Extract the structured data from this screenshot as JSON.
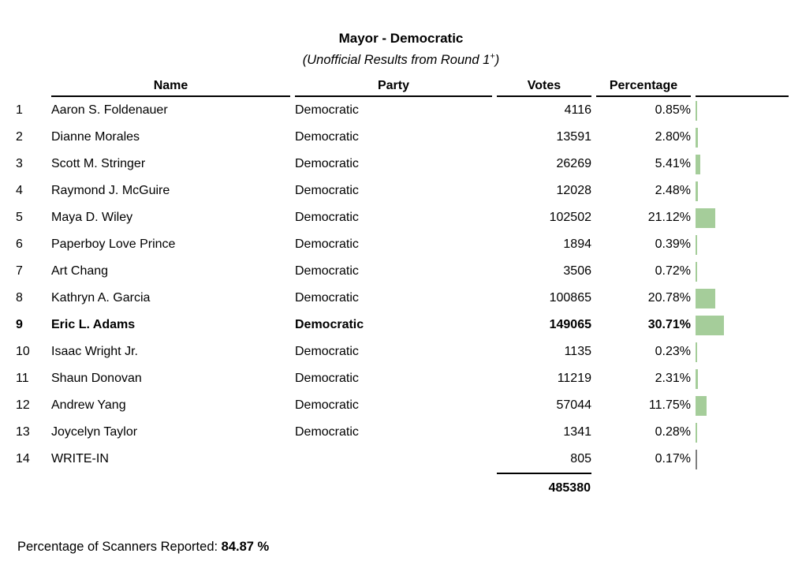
{
  "title": "Mayor - Democratic",
  "subtitle": {
    "prefix": "(Unofficial Results from Round 1",
    "sup": "+",
    "suffix": ")"
  },
  "table": {
    "headers": {
      "name": "Name",
      "party": "Party",
      "votes": "Votes",
      "percentage": "Percentage"
    },
    "rows": [
      {
        "rank": "1",
        "name": "Aaron S. Foldenauer",
        "party": "Democratic",
        "votes": "4116",
        "percentage": "0.85%",
        "pct": 0.85,
        "bold": false,
        "bar_color": "#a5cd9a"
      },
      {
        "rank": "2",
        "name": "Dianne Morales",
        "party": "Democratic",
        "votes": "13591",
        "percentage": "2.80%",
        "pct": 2.8,
        "bold": false,
        "bar_color": "#a5cd9a"
      },
      {
        "rank": "3",
        "name": "Scott M. Stringer",
        "party": "Democratic",
        "votes": "26269",
        "percentage": "5.41%",
        "pct": 5.41,
        "bold": false,
        "bar_color": "#a5cd9a"
      },
      {
        "rank": "4",
        "name": "Raymond J. McGuire",
        "party": "Democratic",
        "votes": "12028",
        "percentage": "2.48%",
        "pct": 2.48,
        "bold": false,
        "bar_color": "#a5cd9a"
      },
      {
        "rank": "5",
        "name": "Maya D. Wiley",
        "party": "Democratic",
        "votes": "102502",
        "percentage": "21.12%",
        "pct": 21.12,
        "bold": false,
        "bar_color": "#a5cd9a"
      },
      {
        "rank": "6",
        "name": "Paperboy Love Prince",
        "party": "Democratic",
        "votes": "1894",
        "percentage": "0.39%",
        "pct": 0.39,
        "bold": false,
        "bar_color": "#a5cd9a"
      },
      {
        "rank": "7",
        "name": "Art Chang",
        "party": "Democratic",
        "votes": "3506",
        "percentage": "0.72%",
        "pct": 0.72,
        "bold": false,
        "bar_color": "#a5cd9a"
      },
      {
        "rank": "8",
        "name": "Kathryn A. Garcia",
        "party": "Democratic",
        "votes": "100865",
        "percentage": "20.78%",
        "pct": 20.78,
        "bold": false,
        "bar_color": "#a5cd9a"
      },
      {
        "rank": "9",
        "name": "Eric L. Adams",
        "party": "Democratic",
        "votes": "149065",
        "percentage": "30.71%",
        "pct": 30.71,
        "bold": true,
        "bar_color": "#a5cd9a"
      },
      {
        "rank": "10",
        "name": "Isaac Wright Jr.",
        "party": "Democratic",
        "votes": "1135",
        "percentage": "0.23%",
        "pct": 0.23,
        "bold": false,
        "bar_color": "#a5cd9a"
      },
      {
        "rank": "11",
        "name": "Shaun Donovan",
        "party": "Democratic",
        "votes": "11219",
        "percentage": "2.31%",
        "pct": 2.31,
        "bold": false,
        "bar_color": "#a5cd9a"
      },
      {
        "rank": "12",
        "name": "Andrew Yang",
        "party": "Democratic",
        "votes": "57044",
        "percentage": "11.75%",
        "pct": 11.75,
        "bold": false,
        "bar_color": "#a5cd9a"
      },
      {
        "rank": "13",
        "name": "Joycelyn Taylor",
        "party": "Democratic",
        "votes": "1341",
        "percentage": "0.28%",
        "pct": 0.28,
        "bold": false,
        "bar_color": "#a5cd9a"
      },
      {
        "rank": "14",
        "name": "WRITE-IN",
        "party": "",
        "votes": "805",
        "percentage": "0.17%",
        "pct": 0.17,
        "bold": false,
        "bar_color": "#7f7f7f"
      }
    ],
    "total_votes": "485380"
  },
  "footer": {
    "label": "Percentage of Scanners Reported: ",
    "value": "84.87 %"
  },
  "chart_data": {
    "type": "bar",
    "title": "Mayor - Democratic (Unofficial Results from Round 1+)",
    "categories": [
      "Aaron S. Foldenauer",
      "Dianne Morales",
      "Scott M. Stringer",
      "Raymond J. McGuire",
      "Maya D. Wiley",
      "Paperboy Love Prince",
      "Art Chang",
      "Kathryn A. Garcia",
      "Eric L. Adams",
      "Isaac Wright Jr.",
      "Shaun Donovan",
      "Andrew Yang",
      "Joycelyn Taylor",
      "WRITE-IN"
    ],
    "series": [
      {
        "name": "Votes",
        "values": [
          4116,
          13591,
          26269,
          12028,
          102502,
          1894,
          3506,
          100865,
          149065,
          1135,
          11219,
          57044,
          1341,
          805
        ]
      },
      {
        "name": "Percentage",
        "values": [
          0.85,
          2.8,
          5.41,
          2.48,
          21.12,
          0.39,
          0.72,
          20.78,
          30.71,
          0.23,
          2.31,
          11.75,
          0.28,
          0.17
        ]
      }
    ],
    "total_votes": 485380,
    "bar_color": "#a5cd9a",
    "writein_bar_color": "#7f7f7f"
  },
  "colors": {
    "bar_green": "#a5cd9a",
    "bar_gray": "#7f7f7f",
    "rule": "#000000"
  }
}
